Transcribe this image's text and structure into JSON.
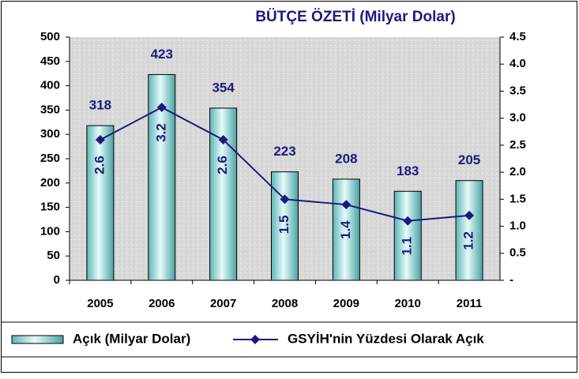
{
  "chart_data": {
    "type": "bar",
    "title": "BÜTÇE ÖZETİ (Milyar Dolar)",
    "categories": [
      "2005",
      "2006",
      "2007",
      "2008",
      "2009",
      "2010",
      "2011"
    ],
    "series": [
      {
        "name": "Açık (Milyar Dolar)",
        "type": "bar",
        "color": "#8fd3d3",
        "values": [
          318,
          423,
          354,
          223,
          208,
          183,
          205
        ]
      },
      {
        "name": "GSYİH'nin Yüzdesi Olarak Açık",
        "type": "line",
        "axis": "y2",
        "color": "#1a1a80",
        "values": [
          2.6,
          3.2,
          2.6,
          1.5,
          1.4,
          1.1,
          1.2
        ]
      }
    ],
    "ylim": [
      0,
      500
    ],
    "yticks": [
      0,
      50,
      100,
      150,
      200,
      250,
      300,
      350,
      400,
      450,
      500
    ],
    "y2lim": [
      0,
      4.5
    ],
    "y2ticks": [
      {
        "value": 0,
        "label": "-"
      },
      0.5,
      {
        "value": 1,
        "label": "1.0"
      },
      1.5,
      {
        "value": 2,
        "label": "2.0"
      },
      2.5,
      {
        "value": 3,
        "label": "3.0"
      },
      3.5,
      {
        "value": 4,
        "label": "4.0"
      },
      4.5
    ],
    "legend": "bottom"
  }
}
